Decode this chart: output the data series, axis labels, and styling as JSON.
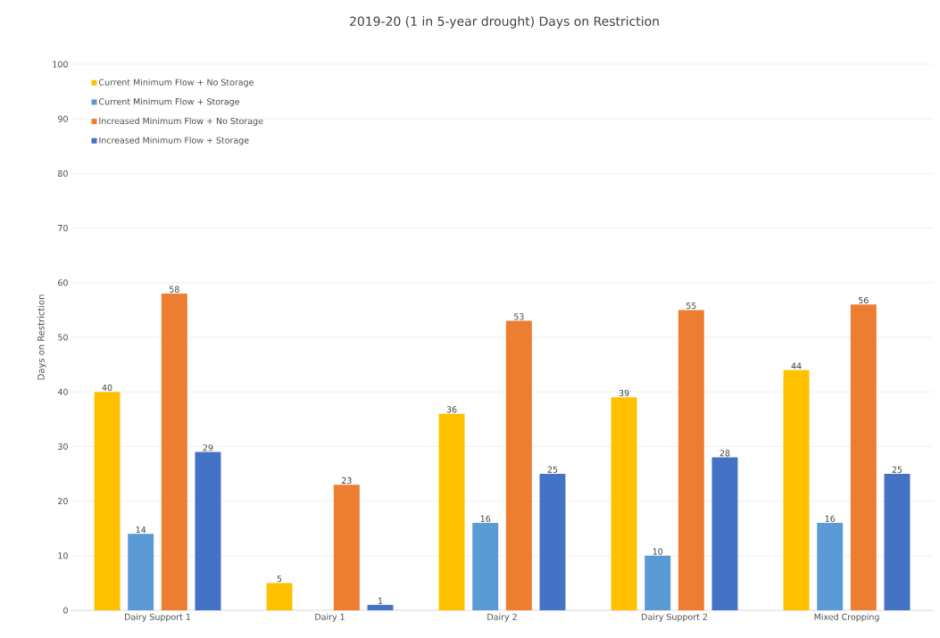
{
  "chart_data": {
    "type": "bar",
    "title": "2019-20 (1 in 5-year drought) Days on Restriction",
    "ylabel": "Days on Restriction",
    "categories": [
      "Dairy Support 1",
      "Dairy 1",
      "Dairy 2",
      "Dairy Support 2",
      "Mixed Cropping"
    ],
    "series": [
      {
        "name": "Current Minimum Flow + No Storage",
        "color": "#ffc000",
        "values": [
          40,
          5,
          36,
          39,
          44
        ]
      },
      {
        "name": "Current Minimum Flow + Storage",
        "color": "#5b9bd5",
        "values": [
          14,
          null,
          16,
          10,
          16
        ]
      },
      {
        "name": "Increased Minimum Flow + No Storage",
        "color": "#ed7d31",
        "values": [
          58,
          23,
          53,
          55,
          56
        ]
      },
      {
        "name": "Increased Minimum Flow + Storage",
        "color": "#4472c4",
        "values": [
          29,
          1,
          25,
          28,
          25
        ]
      }
    ],
    "ylim": [
      0,
      100
    ],
    "yticks": [
      0,
      10,
      20,
      30,
      40,
      50,
      60,
      70,
      80,
      90,
      100
    ],
    "grid": "y",
    "legend": "top left",
    "data_labels": true
  }
}
